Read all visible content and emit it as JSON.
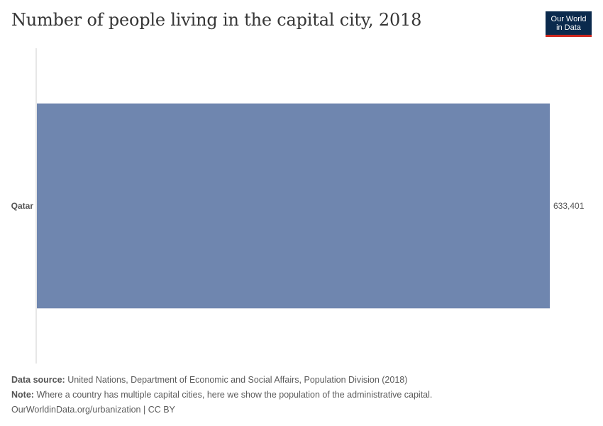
{
  "header": {
    "title": "Number of people living in the capital city, 2018",
    "logo_line1": "Our World",
    "logo_line2": "in Data"
  },
  "chart_data": {
    "type": "bar",
    "orientation": "horizontal",
    "categories": [
      "Qatar"
    ],
    "values": [
      633401
    ],
    "value_labels": [
      "633,401"
    ],
    "bar_color": "#6f86af",
    "xlim": [
      0,
      633401
    ],
    "grid": false
  },
  "footer": {
    "source_label": "Data source:",
    "source_text": "United Nations, Department of Economic and Social Affairs, Population Division (2018)",
    "note_label": "Note:",
    "note_text": "Where a country has multiple capital cities, here we show the population of the administrative capital.",
    "link": "OurWorldinData.org/urbanization | CC BY"
  }
}
